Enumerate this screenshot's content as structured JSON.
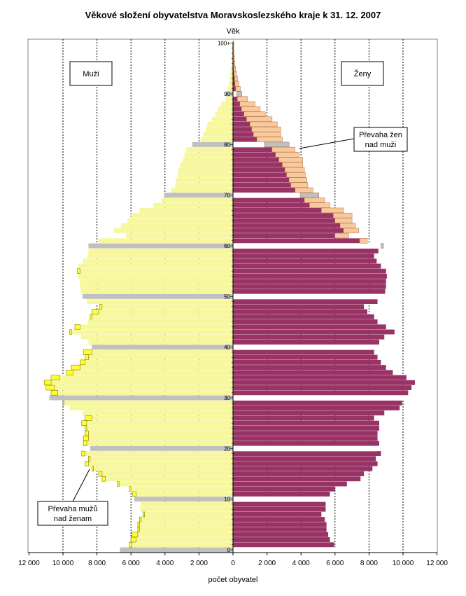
{
  "chart_data": {
    "type": "bar",
    "orientation": "horizontal-population-pyramid",
    "title": "Věkové složení obyvatelstva Moravskoslezského kraje k 31. 12. 2007",
    "ylabel": "Věk",
    "xlabel": "počet obyvatel",
    "xlim": [
      -12000,
      12000
    ],
    "ylim": [
      0,
      100
    ],
    "x_tick_labels": [
      "12 000",
      "10 000",
      "8 000",
      "6 000",
      "4 000",
      "2 000",
      "0",
      "2 000",
      "4 000",
      "6 000",
      "8 000",
      "10 000",
      "12 000"
    ],
    "x_ticks": [
      -12000,
      -10000,
      -8000,
      -6000,
      -4000,
      -2000,
      0,
      2000,
      4000,
      6000,
      8000,
      10000,
      12000
    ],
    "y_tick_labels": [
      "0",
      "10",
      "20",
      "30",
      "40",
      "50",
      "60",
      "70",
      "80",
      "90",
      "100+"
    ],
    "y_ticks": [
      0,
      10,
      20,
      30,
      40,
      50,
      60,
      70,
      80,
      90,
      100
    ],
    "grid": "vertical dashed every 2000",
    "ages": [
      0,
      1,
      2,
      3,
      4,
      5,
      6,
      7,
      8,
      9,
      10,
      11,
      12,
      13,
      14,
      15,
      16,
      17,
      18,
      19,
      20,
      21,
      22,
      23,
      24,
      25,
      26,
      27,
      28,
      29,
      30,
      31,
      32,
      33,
      34,
      35,
      36,
      37,
      38,
      39,
      40,
      41,
      42,
      43,
      44,
      45,
      46,
      47,
      48,
      49,
      50,
      51,
      52,
      53,
      54,
      55,
      56,
      57,
      58,
      59,
      60,
      61,
      62,
      63,
      64,
      65,
      66,
      67,
      68,
      69,
      70,
      71,
      72,
      73,
      74,
      75,
      76,
      77,
      78,
      79,
      80,
      81,
      82,
      83,
      84,
      85,
      86,
      87,
      88,
      89,
      90,
      91,
      92,
      93,
      94,
      95,
      96,
      97,
      98,
      99,
      100
    ],
    "series": [
      {
        "name": "Muži",
        "side": "left",
        "color": "#f7f79e",
        "values": [
          6650,
          6100,
          6000,
          5950,
          5600,
          5600,
          5500,
          5300,
          5450,
          5450,
          5800,
          5900,
          6100,
          6800,
          7700,
          7900,
          8300,
          8700,
          8500,
          8900,
          8400,
          8800,
          8800,
          8700,
          8700,
          8900,
          8700,
          8850,
          9600,
          10000,
          10800,
          10700,
          11000,
          11100,
          10700,
          9800,
          9500,
          9000,
          8700,
          8800,
          8300,
          8500,
          8950,
          9600,
          9300,
          8550,
          8400,
          8300,
          7850,
          8600,
          8850,
          8950,
          9000,
          9000,
          9100,
          9150,
          9100,
          8800,
          8550,
          8500,
          8500,
          7900,
          6300,
          7000,
          6600,
          6200,
          6000,
          5500,
          4700,
          4200,
          4000,
          3650,
          3400,
          3350,
          3250,
          3200,
          3100,
          2950,
          2850,
          2750,
          2400,
          1900,
          1750,
          1600,
          1500,
          1250,
          1050,
          900,
          700,
          450,
          420,
          300,
          240,
          200,
          150,
          110,
          80,
          60,
          40,
          30,
          40
        ]
      },
      {
        "name": "Ženy",
        "side": "right",
        "color": "#993366",
        "values": [
          6600,
          5950,
          5700,
          5600,
          5500,
          5500,
          5400,
          5200,
          5450,
          5450,
          5650,
          5700,
          6000,
          6700,
          7500,
          7700,
          8200,
          8500,
          8400,
          8700,
          8450,
          8600,
          8500,
          8500,
          8600,
          8600,
          8300,
          8900,
          9800,
          9950,
          10000,
          10300,
          10500,
          10700,
          10200,
          9400,
          9000,
          8700,
          8500,
          8300,
          8200,
          8600,
          8900,
          9500,
          9000,
          8500,
          8300,
          7900,
          7700,
          8500,
          8950,
          8950,
          9000,
          9000,
          9050,
          9000,
          8700,
          8450,
          8300,
          8550,
          8700,
          7450,
          6000,
          6500,
          6300,
          6000,
          5900,
          5200,
          4500,
          4200,
          3950,
          3650,
          3400,
          3300,
          3150,
          3050,
          2900,
          2700,
          2500,
          2300,
          1850,
          1400,
          1200,
          1100,
          1000,
          800,
          650,
          500,
          400,
          260,
          220,
          160,
          120,
          90,
          60,
          40,
          25,
          18,
          10,
          5,
          8
        ]
      },
      {
        "name": "Převaha žen nad muži",
        "side": "right-overlay",
        "color": "#f9c99e",
        "values": [
          0,
          0,
          0,
          0,
          0,
          0,
          0,
          0,
          0,
          0,
          0,
          0,
          0,
          0,
          0,
          0,
          0,
          0,
          0,
          0,
          0,
          0,
          0,
          0,
          0,
          0,
          0,
          0,
          0,
          0,
          0,
          0,
          0,
          0,
          0,
          0,
          0,
          0,
          0,
          0,
          0,
          0,
          0,
          0,
          0,
          0,
          0,
          0,
          0,
          0,
          0,
          0,
          0,
          0,
          0,
          0,
          0,
          0,
          0,
          0,
          150,
          450,
          800,
          900,
          900,
          1000,
          1100,
          1300,
          1200,
          1200,
          1100,
          1050,
          1000,
          1050,
          1100,
          1150,
          1200,
          1400,
          1400,
          1350,
          1450,
          1500,
          1600,
          1700,
          1600,
          1500,
          1250,
          1100,
          900,
          600,
          300,
          270,
          220,
          180,
          140,
          110,
          90,
          70,
          55,
          35,
          40
        ]
      },
      {
        "name": "Převaha mužů nad ženam",
        "side": "left-overlay",
        "color": "#ffff33",
        "values": [
          50,
          150,
          300,
          350,
          100,
          100,
          100,
          100,
          0,
          0,
          150,
          200,
          100,
          100,
          200,
          200,
          100,
          200,
          100,
          200,
          0,
          200,
          300,
          200,
          100,
          300,
          400,
          0,
          0,
          50,
          0,
          400,
          500,
          400,
          500,
          400,
          500,
          300,
          200,
          500,
          100,
          0,
          0,
          100,
          300,
          0,
          100,
          400,
          150,
          0,
          0,
          0,
          0,
          0,
          0,
          150,
          0,
          0,
          0,
          0,
          0,
          0,
          0,
          0,
          0,
          0,
          0,
          0,
          0,
          0,
          0,
          0,
          0,
          0,
          0,
          0,
          0,
          0,
          0,
          0,
          0,
          0,
          0,
          0,
          0,
          0,
          0,
          0,
          0,
          0,
          0,
          0,
          0,
          0,
          0,
          0,
          0,
          0,
          0,
          0,
          0
        ]
      }
    ],
    "highlight_ages": [
      0,
      10,
      20,
      30,
      40,
      50,
      60,
      70,
      80,
      90
    ],
    "highlight_color": "#c0c0c0",
    "legend_boxes": {
      "left": "Muži",
      "right": "Ženy"
    },
    "annotations": [
      {
        "text_lines": [
          "Převaha žen",
          "nad muži"
        ],
        "points_to_age": 79,
        "side": "right"
      },
      {
        "text_lines": [
          "Převaha mužů",
          "nad ženam"
        ],
        "points_to_age": 16,
        "side": "left"
      }
    ]
  }
}
